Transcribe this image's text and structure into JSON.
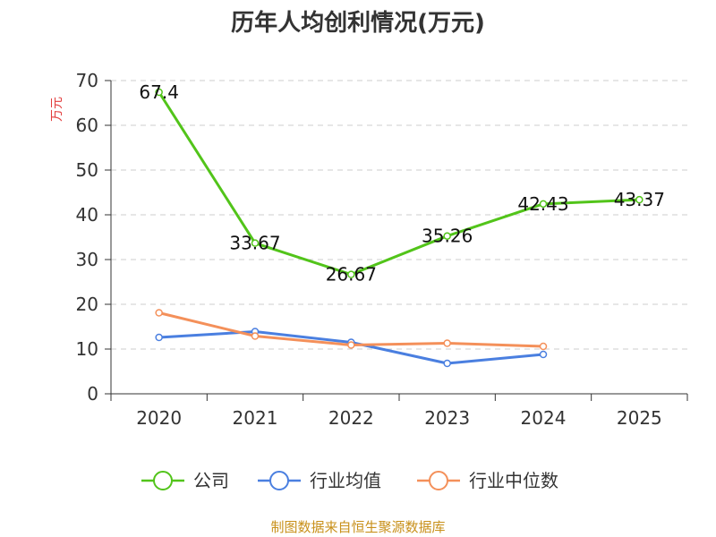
{
  "chart_data": {
    "type": "line",
    "title": "历年人均创利情况(万元)",
    "ylabel": "万元",
    "xlabel": "",
    "categories": [
      "2020",
      "2021",
      "2022",
      "2023",
      "2024",
      "2025"
    ],
    "ylim": [
      0,
      70
    ],
    "yticks": [
      0,
      10,
      20,
      30,
      40,
      50,
      60,
      70
    ],
    "grid": true,
    "legend_position": "bottom",
    "series": [
      {
        "name": "公司",
        "color": "#52c41a",
        "values": [
          67.4,
          33.67,
          26.67,
          35.26,
          42.43,
          43.37
        ],
        "labels": [
          "67.4",
          "33.67",
          "26.67",
          "35.26",
          "42.43",
          "43.37"
        ]
      },
      {
        "name": "行业均值",
        "color": "#4a7fe0",
        "values": [
          12.6,
          13.9,
          11.5,
          6.8,
          8.8,
          null
        ]
      },
      {
        "name": "行业中位数",
        "color": "#f4905a",
        "values": [
          18.1,
          12.9,
          10.9,
          11.3,
          10.6,
          null
        ]
      }
    ]
  },
  "source": "制图数据来自恒生聚源数据库",
  "colors": {
    "axis": "#333333",
    "grid": "#cccccc",
    "ylabel": "#e23c3c",
    "source": "#c8901a"
  }
}
